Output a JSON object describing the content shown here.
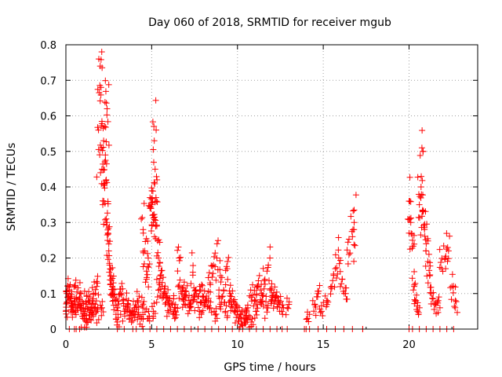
{
  "chart_data": {
    "type": "scatter",
    "title": "Day 060 of 2018, SRMTID for receiver mgub",
    "xlabel": "GPS time / hours",
    "ylabel": "SRMTID / TECUs",
    "xlim": [
      0,
      24
    ],
    "ylim": [
      0,
      0.8
    ],
    "xticks": [
      0,
      5,
      10,
      15,
      20
    ],
    "yticks": [
      0,
      0.1,
      0.2,
      0.3,
      0.4,
      0.5,
      0.6,
      0.7,
      0.8
    ],
    "xtick_labels": [
      "0",
      "5",
      "10",
      "15",
      "20"
    ],
    "ytick_labels": [
      "0",
      "0.1",
      "0.2",
      "0.3",
      "0.4",
      "0.5",
      "0.6",
      "0.7",
      "0.8"
    ],
    "grid": true,
    "marker": "+",
    "color": "#ff0000",
    "series": [
      {
        "name": "SRMTID",
        "x": [
          0.05,
          0.1,
          0.2,
          0.3,
          0.4,
          0.5,
          0.55,
          0.7,
          0.8,
          0.9,
          1.0,
          1.1,
          1.2,
          1.3,
          1.4,
          1.5,
          1.6,
          1.7,
          1.8,
          1.9,
          2.0,
          2.05,
          2.1,
          2.15,
          2.2,
          2.25,
          2.3,
          2.35,
          2.4,
          2.45,
          2.5,
          2.55,
          2.6,
          2.7,
          2.8,
          2.9,
          3.0,
          3.2,
          3.4,
          3.6,
          3.8,
          4.0,
          4.2,
          4.4,
          4.5,
          4.6,
          4.7,
          4.8,
          4.9,
          5.0,
          5.05,
          5.1,
          5.15,
          5.2,
          5.25,
          5.3,
          5.4,
          5.5,
          5.6,
          5.8,
          6.0,
          6.2,
          6.4,
          6.6,
          6.8,
          7.0,
          7.2,
          7.4,
          7.6,
          7.8,
          8.0,
          8.2,
          8.4,
          8.6,
          8.8,
          9.0,
          9.2,
          9.4,
          9.6,
          9.8,
          10.0,
          10.2,
          10.4,
          10.6,
          10.8,
          11.0,
          11.2,
          11.4,
          11.6,
          11.8,
          12.0,
          12.2,
          12.4,
          12.6,
          12.9,
          13.9,
          14.1,
          14.5,
          14.7,
          14.9,
          15.2,
          15.5,
          15.7,
          15.9,
          16.1,
          16.3,
          16.5,
          16.7,
          16.8,
          17.3,
          20.0,
          20.1,
          20.2,
          20.3,
          20.4,
          20.5,
          20.6,
          20.7,
          20.75,
          20.8,
          20.9,
          21.0,
          21.1,
          21.2,
          21.3,
          21.5,
          21.7,
          21.9,
          22.1,
          22.3,
          22.5,
          22.7,
          0.0,
          0.3,
          0.6,
          0.9,
          1.2,
          1.5,
          1.8,
          2.1,
          2.4,
          2.7,
          3.0,
          3.3,
          3.6,
          3.9,
          4.2,
          4.5,
          4.8,
          5.1,
          5.4,
          5.7,
          6.0,
          6.3,
          6.6,
          6.9,
          7.2,
          7.5,
          7.8,
          8.1,
          8.4,
          8.7,
          9.0,
          9.3,
          9.6,
          9.9,
          10.2,
          10.5,
          10.8,
          11.1,
          11.4,
          11.7,
          12.0,
          12.3,
          12.6
        ],
        "y": [
          0.1,
          0.09,
          0.11,
          0.08,
          0.05,
          0.0,
          0.12,
          0.07,
          0.09,
          0.06,
          0.03,
          0.05,
          0.02,
          0.08,
          0.04,
          0.06,
          0.1,
          0.07,
          0.12,
          0.56,
          0.74,
          0.68,
          0.45,
          0.35,
          0.53,
          0.57,
          0.49,
          0.42,
          0.3,
          0.27,
          0.22,
          0.18,
          0.15,
          0.12,
          0.09,
          0.08,
          0.06,
          0.1,
          0.05,
          0.07,
          0.04,
          0.06,
          0.08,
          0.03,
          0.28,
          0.22,
          0.14,
          0.2,
          0.37,
          0.35,
          0.32,
          0.3,
          0.53,
          0.45,
          0.37,
          0.29,
          0.2,
          0.15,
          0.12,
          0.1,
          0.08,
          0.07,
          0.06,
          0.2,
          0.11,
          0.09,
          0.07,
          0.16,
          0.1,
          0.12,
          0.09,
          0.08,
          0.13,
          0.18,
          0.2,
          0.15,
          0.11,
          0.17,
          0.1,
          0.05,
          0.04,
          0.03,
          0.02,
          0.06,
          0.09,
          0.08,
          0.12,
          0.1,
          0.14,
          0.18,
          0.11,
          0.09,
          0.07,
          0.0,
          0.06,
          0.0,
          0.03,
          0.07,
          0.1,
          0.05,
          0.08,
          0.12,
          0.17,
          0.2,
          0.14,
          0.1,
          0.21,
          0.26,
          0.3,
          0.0,
          0.36,
          0.3,
          0.25,
          0.12,
          0.08,
          0.05,
          0.35,
          0.4,
          0.51,
          0.33,
          0.28,
          0.24,
          0.19,
          0.15,
          0.1,
          0.07,
          0.08,
          0.17,
          0.2,
          0.22,
          0.12,
          0.08,
          0.05,
          0.08,
          0.06,
          0.06,
          0.07,
          0.04,
          0.05,
          0.06,
          0.62,
          0.1,
          0.02,
          0.08,
          0.06,
          0.05,
          0.04,
          0.07,
          0.03,
          0.05,
          0.11,
          0.09,
          0.07,
          0.05,
          0.12,
          0.07,
          0.06,
          0.09,
          0.05,
          0.08,
          0.06,
          0.04,
          0.07,
          0.05,
          0.08,
          0.06,
          0.04,
          0.03,
          0.02,
          0.05,
          0.07,
          0.06,
          0.08,
          0.09,
          0.06
        ]
      }
    ],
    "extra_points": {
      "x": [
        0.2,
        0.6,
        0.8,
        3.0,
        3.4,
        3.9,
        4.1,
        4.5,
        4.9,
        5.3,
        5.7,
        6.1,
        6.5,
        6.9,
        7.3,
        7.7,
        8.1,
        8.5,
        8.9,
        9.3,
        9.7,
        10.1,
        10.3,
        10.7,
        11.1,
        11.5,
        11.9,
        12.3,
        12.9,
        14.0,
        14.2,
        14.7,
        15.2,
        15.7,
        16.2,
        16.7,
        17.3,
        20.0,
        20.2,
        20.6,
        21.0,
        21.4,
        21.8,
        22.2,
        22.6
      ],
      "y": [
        0.0,
        0.0,
        0.0,
        0.0,
        0.0,
        0.0,
        0.0,
        0.0,
        0.0,
        0.0,
        0.0,
        0.0,
        0.0,
        0.0,
        0.0,
        0.0,
        0.0,
        0.0,
        0.0,
        0.0,
        0.0,
        0.0,
        0.0,
        0.0,
        0.0,
        0.0,
        0.0,
        0.0,
        0.0,
        0.0,
        0.0,
        0.0,
        0.0,
        0.0,
        0.0,
        0.0,
        0.0,
        0.0,
        0.0,
        0.0,
        0.0,
        0.0,
        0.0,
        0.0,
        0.0
      ]
    }
  }
}
